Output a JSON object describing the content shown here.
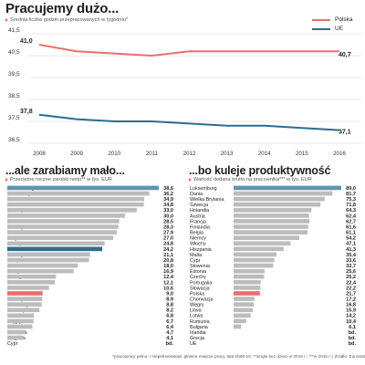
{
  "line_header": {
    "title": "Pracujemy dużo...",
    "subtitle": "Średnia liczba godzin przepracowanych w tygodniu*"
  },
  "left_header": {
    "title": "...ale zarabiamy mało...",
    "subtitle": "Przeciętne roczne zarobki netto** w tys. EUR"
  },
  "right_header": {
    "title": "...bo kuleje produktywność",
    "subtitle": "Wartość dodana brutto na pracownika*** w tys. EUR"
  },
  "footnote": "*pracownicy pełno- i niepełnoetatowi, główne miejsce pracy, lata 2008-16; **single bez dzieci w 2015 r.; ***w 2015 r. | Źródło: Eurostat",
  "colors": {
    "polska": "#e8706f",
    "ue": "#2a6e8f",
    "bar": "#bcbcbc",
    "bar_ue": "#2e6e8e",
    "bar_polska": "#e8706f",
    "bar_top": "#5e96b0",
    "grid": "#d7d7d7"
  },
  "chart_data": [
    {
      "type": "line",
      "title": "Pracujemy dużo...",
      "subtitle": "Średnia liczba godzin przepracowanych w tygodniu*",
      "x": [
        2008,
        2009,
        2010,
        2011,
        2012,
        2013,
        2014,
        2015,
        2016
      ],
      "series": [
        {
          "name": "Polska",
          "color": "#e8706f",
          "values": [
            41.0,
            40.7,
            40.6,
            40.5,
            40.7,
            40.7,
            40.7,
            40.7,
            40.7
          ]
        },
        {
          "name": "UE",
          "color": "#2a6e8f",
          "values": [
            37.8,
            37.6,
            37.5,
            37.5,
            37.4,
            37.3,
            37.3,
            37.2,
            37.1
          ]
        }
      ],
      "end_labels": {
        "Polska": {
          "first": "41,0",
          "last": "40,7"
        },
        "UE": {
          "first": "37,8",
          "last": "37,1"
        }
      },
      "ylim": [
        36.5,
        41.5
      ],
      "yticks": [
        "41,5",
        "40,5",
        "39,5",
        "38,5",
        "37,5",
        "36,5"
      ],
      "grid": true,
      "legend": "top-right"
    },
    {
      "type": "bar",
      "orientation": "horizontal",
      "title": "...ale zarabiamy mało...",
      "subtitle": "Przeciętne roczne zarobki netto** w tys. EUR",
      "categories": [
        "Luksemburg",
        "Wielka Brytania",
        "Dania",
        "Holandia",
        "Szwecja",
        "Finlandia",
        "Austria",
        "Niemcy",
        "Irlandia",
        "Belgia",
        "Francja",
        "UE",
        "Włochy",
        "Hiszpania",
        "Malta",
        "Grecja",
        "Portugalia",
        "Słowenia",
        "Estonia",
        "Polska",
        "Czechy",
        "Chorwacja",
        "Słowacja",
        "Łotwa",
        "Węgry",
        "Litwa",
        "Rumunia",
        "Bułgaria",
        "Cypr"
      ],
      "values": [
        38.6,
        36.2,
        34.9,
        34.8,
        33.0,
        30.0,
        28.5,
        28.3,
        27.9,
        27.0,
        24.8,
        24.2,
        21.1,
        20.8,
        18.0,
        16.9,
        12.4,
        12.1,
        10.6,
        9.0,
        8.9,
        8.8,
        8.2,
        6.8,
        6.7,
        6.4,
        4.7,
        4.1,
        null
      ],
      "value_labels": [
        "38,6",
        "36,2",
        "34,9",
        "34,8",
        "33,0",
        "30,0",
        "28,5",
        "28,3",
        "27,9",
        "27,0",
        "24,8",
        "24,2",
        "21,1",
        "20,8",
        "18,0",
        "16,9",
        "12,4",
        "12,1",
        "10,6",
        "9,0",
        "8,9",
        "8,8",
        "8,2",
        "6,8",
        "6,7",
        "6,4",
        "4,7",
        "4,1",
        "bd."
      ],
      "xlim": [
        0,
        38.6
      ]
    },
    {
      "type": "bar",
      "orientation": "horizontal",
      "title": "...bo kuleje produktywność",
      "subtitle": "Wartość dodana brutto na pracownika*** w tys. EUR",
      "categories": [
        "Luksemburg",
        "Dania",
        "Wielka Brytania",
        "Szwecja",
        "Holandia",
        "Austria",
        "Francja",
        "Finlandia",
        "Belgia",
        "Niemcy",
        "Włochy",
        "Hiszpania",
        "Malta",
        "Cypr",
        "Słowenia",
        "Estonia",
        "Czechy",
        "Portugalia",
        "Słowacja",
        "Polska",
        "Chorwacja",
        "Węgry",
        "Litwa",
        "Łotwa",
        "Rumunia",
        "Bułgaria",
        "Irlandia",
        "Grecja",
        "UE"
      ],
      "values": [
        89.0,
        81.7,
        75.3,
        71.8,
        64.3,
        62.4,
        62.7,
        61.6,
        61.1,
        54.2,
        47.1,
        41.3,
        35.4,
        33.6,
        32.7,
        25.6,
        25.2,
        22.4,
        22.2,
        21.7,
        17.2,
        16.8,
        15.9,
        14.2,
        10.4,
        6.1,
        null,
        null,
        null
      ],
      "value_labels": [
        "89,0",
        "81,7",
        "75,3",
        "71,8",
        "64,3",
        "62,4",
        "62,7",
        "61,6",
        "61,1",
        "54,2",
        "47,1",
        "41,3",
        "35,4",
        "33,6",
        "32,7",
        "25,6",
        "25,2",
        "22,4",
        "22,2",
        "21,7",
        "17,2",
        "16,8",
        "15,9",
        "14,2",
        "10,4",
        "6,1",
        "bd.",
        "bd.",
        "bd."
      ],
      "xlim": [
        0,
        89.0
      ]
    }
  ]
}
